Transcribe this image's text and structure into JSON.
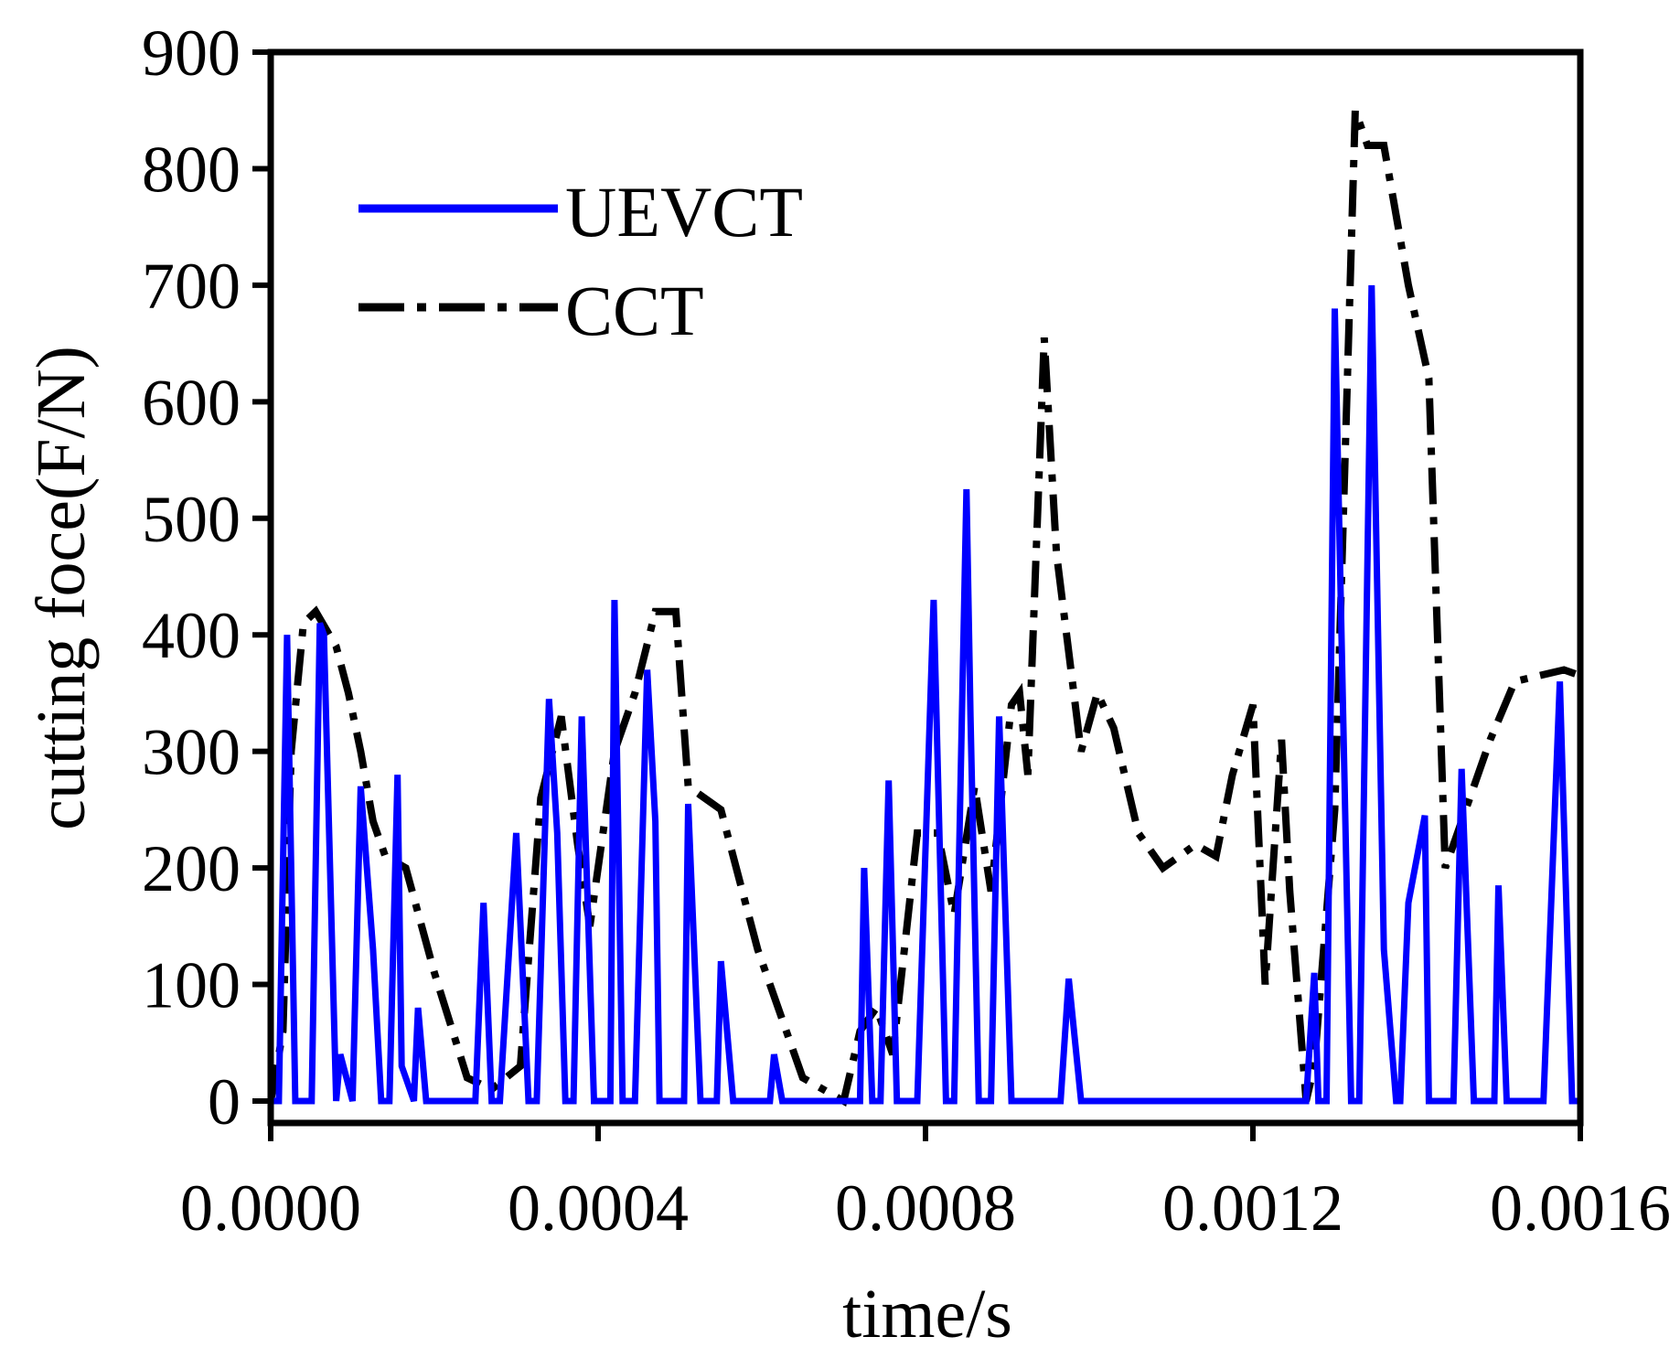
{
  "chart_data": {
    "type": "line",
    "title": "",
    "xlabel": "time/s",
    "ylabel": "cutting foce(F/N)",
    "xlim": [
      0.0,
      0.0016
    ],
    "ylim": [
      -20,
      900
    ],
    "x_ticks": [
      "0.0000",
      "0.0004",
      "0.0008",
      "0.0012",
      "0.0016"
    ],
    "x_tick_values": [
      0.0,
      0.0004,
      0.0008,
      0.0012,
      0.0016
    ],
    "y_ticks": [
      "0",
      "100",
      "200",
      "300",
      "400",
      "500",
      "600",
      "700",
      "800",
      "900"
    ],
    "y_tick_values": [
      0,
      100,
      200,
      300,
      400,
      500,
      600,
      700,
      800,
      900
    ],
    "grid": false,
    "legend_position": "top-left",
    "series": [
      {
        "name": "UEVCT",
        "color": "#0000ff",
        "style": "solid",
        "x": [
          0.0,
          1e-05,
          2e-05,
          3e-05,
          4e-05,
          5e-05,
          6e-05,
          6.5e-05,
          8e-05,
          8.5e-05,
          0.0001,
          0.00011,
          0.000125,
          0.000135,
          0.000145,
          0.000155,
          0.00016,
          0.000165,
          0.000175,
          0.00018,
          0.00019,
          0.000205,
          0.00021,
          0.00022,
          0.00025,
          0.00026,
          0.00027,
          0.00028,
          0.0003,
          0.000315,
          0.000325,
          0.00034,
          0.00035,
          0.00036,
          0.00037,
          0.00038,
          0.000395,
          0.000415,
          0.00042,
          0.00043,
          0.000445,
          0.00046,
          0.00047,
          0.000475,
          0.000485,
          0.000505,
          0.00051,
          0.000525,
          0.000545,
          0.00055,
          0.000565,
          0.00058,
          0.000595,
          0.00061,
          0.000615,
          0.000625,
          0.00064,
          0.00072,
          0.000725,
          0.000735,
          0.000745,
          0.000755,
          0.000765,
          0.00078,
          0.00079,
          0.00081,
          0.000825,
          0.000835,
          0.00085,
          0.000855,
          0.000865,
          0.00088,
          0.00089,
          0.000905,
          0.00091,
          0.000925,
          0.000935,
          0.000945,
          0.000955,
          0.000965,
          0.000975,
          0.00099,
          0.001,
          0.00101,
          0.001015,
          0.001025,
          0.001035,
          0.001265,
          0.001275,
          0.00128,
          0.00129,
          0.0013,
          0.00132,
          0.00133,
          0.001345,
          0.00136,
          0.001375,
          0.00138,
          0.00139,
          0.00141,
          0.001415,
          0.00143,
          0.001445,
          0.001455,
          0.00147,
          0.00148,
          0.001495,
          0.0015,
          0.00151,
          0.00153,
          0.00154,
          0.001545,
          0.001555,
          0.001575,
          0.00159,
          0.0016
        ],
        "values": [
          0,
          0,
          400,
          0,
          0,
          0,
          410,
          400,
          0,
          40,
          0,
          270,
          130,
          0,
          0,
          280,
          30,
          20,
          0,
          80,
          0,
          0,
          0,
          0,
          0,
          170,
          0,
          0,
          230,
          0,
          0,
          345,
          230,
          0,
          0,
          330,
          0,
          0,
          430,
          0,
          0,
          370,
          240,
          0,
          0,
          0,
          255,
          0,
          0,
          120,
          0,
          0,
          0,
          0,
          40,
          0,
          0,
          0,
          200,
          0,
          0,
          275,
          0,
          0,
          0,
          430,
          0,
          0,
          525,
          330,
          0,
          0,
          330,
          0,
          0,
          0,
          0,
          0,
          0,
          0,
          105,
          0,
          0,
          0,
          0,
          0,
          0,
          0,
          110,
          0,
          0,
          680,
          0,
          0,
          700,
          130,
          0,
          0,
          170,
          245,
          0,
          0,
          0,
          285,
          0,
          0,
          0,
          185,
          0,
          0,
          0,
          0,
          0,
          360,
          0,
          0
        ]
      },
      {
        "name": "CCT",
        "color": "#000000",
        "style": "dashdot",
        "x": [
          0.0,
          1.5e-05,
          2.5e-05,
          4e-05,
          5.5e-05,
          8e-05,
          9.5e-05,
          0.00011,
          0.000125,
          0.00014,
          0.000165,
          0.0002,
          0.00024,
          0.00027,
          0.000305,
          0.00033,
          0.000355,
          0.000375,
          0.00039,
          0.00042,
          0.000445,
          0.00047,
          0.000495,
          0.00051,
          0.00055,
          0.000595,
          0.00065,
          0.0007,
          0.00072,
          0.00074,
          0.00076,
          0.00079,
          0.000815,
          0.000835,
          0.00086,
          0.00088,
          0.000905,
          0.000915,
          0.000925,
          0.000945,
          0.00096,
          0.00099,
          0.00101,
          0.00103,
          0.00106,
          0.00109,
          0.00113,
          0.001155,
          0.001175,
          0.0012,
          0.001215,
          0.001235,
          0.001245,
          0.001265,
          0.001275,
          0.0013,
          0.001325,
          0.00134,
          0.00136,
          0.00139,
          0.001415,
          0.001435,
          0.00146,
          0.00149,
          0.00152,
          0.00155,
          0.00158,
          0.0016
        ],
        "values": [
          0,
          60,
          300,
          410,
          420,
          390,
          350,
          300,
          240,
          210,
          200,
          110,
          20,
          10,
          30,
          260,
          330,
          220,
          150,
          300,
          350,
          420,
          420,
          270,
          250,
          130,
          20,
          0,
          60,
          80,
          40,
          230,
          230,
          160,
          270,
          180,
          340,
          350,
          280,
          655,
          470,
          300,
          350,
          320,
          230,
          200,
          220,
          210,
          280,
          340,
          100,
          310,
          180,
          0,
          30,
          250,
          850,
          820,
          820,
          700,
          620,
          200,
          250,
          310,
          360,
          365,
          370,
          365
        ]
      }
    ]
  }
}
